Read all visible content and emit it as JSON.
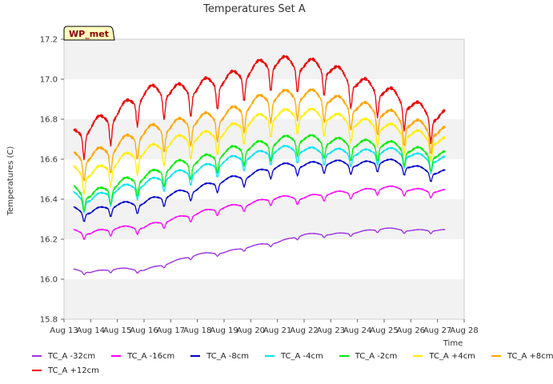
{
  "chart_data": {
    "type": "line",
    "title": "Temperatures Set A",
    "xlabel": "Time",
    "ylabel": "Temperatures (C)",
    "badge": "WP_met",
    "ylim": [
      15.8,
      17.2
    ],
    "yticks": [
      15.8,
      16.0,
      16.2,
      16.4,
      16.6,
      16.8,
      17.0,
      17.2
    ],
    "ytick_labels": [
      "15.8",
      "16.0",
      "16.2",
      "16.4",
      "16.6",
      "16.8",
      "17.0",
      "17.2"
    ],
    "xlim": [
      13,
      28
    ],
    "xticks": [
      13,
      14,
      15,
      16,
      17,
      18,
      19,
      20,
      21,
      22,
      23,
      24,
      25,
      26,
      27,
      28
    ],
    "xtick_labels": [
      "Aug 13",
      "Aug 14",
      "Aug 15",
      "Aug 16",
      "Aug 17",
      "Aug 18",
      "Aug 19",
      "Aug 20",
      "Aug 21",
      "Aug 22",
      "Aug 23",
      "Aug 24",
      "Aug 25",
      "Aug 26",
      "Aug 27",
      "Aug 28"
    ],
    "x": [
      "Aug 13",
      "Aug 14",
      "Aug 15",
      "Aug 16",
      "Aug 17",
      "Aug 18",
      "Aug 19",
      "Aug 20",
      "Aug 21",
      "Aug 22",
      "Aug 23",
      "Aug 24",
      "Aug 25",
      "Aug 26",
      "Aug 27"
    ],
    "grid": "horizontal shaded bands",
    "legend_position": "bottom",
    "series": [
      {
        "name": "TC_A -32cm",
        "color": "#9b30e0",
        "values": [
          16.05,
          16.03,
          16.05,
          16.04,
          16.08,
          16.12,
          16.13,
          16.16,
          16.18,
          16.22,
          16.22,
          16.23,
          16.25,
          16.24,
          16.24
        ]
      },
      {
        "name": "TC_A -16cm",
        "color": "#ff00ff",
        "values": [
          16.24,
          16.22,
          16.25,
          16.25,
          16.29,
          16.32,
          16.35,
          16.37,
          16.4,
          16.4,
          16.42,
          16.43,
          16.45,
          16.44,
          16.43
        ]
      },
      {
        "name": "TC_A -8cm",
        "color": "#0000cd",
        "values": [
          16.35,
          16.32,
          16.36,
          16.37,
          16.41,
          16.44,
          16.48,
          16.51,
          16.55,
          16.56,
          16.57,
          16.56,
          16.58,
          16.55,
          16.52
        ]
      },
      {
        "name": "TC_A -4cm",
        "color": "#00e5ee",
        "values": [
          16.42,
          16.38,
          16.43,
          16.46,
          16.5,
          16.53,
          16.57,
          16.6,
          16.63,
          16.63,
          16.62,
          16.61,
          16.63,
          16.6,
          16.58
        ]
      },
      {
        "name": "TC_A -2cm",
        "color": "#00ee00",
        "values": [
          16.44,
          16.4,
          16.45,
          16.49,
          16.54,
          16.57,
          16.61,
          16.64,
          16.67,
          16.68,
          16.67,
          16.65,
          16.66,
          16.62,
          16.6
        ]
      },
      {
        "name": "TC_A +4cm",
        "color": "#ffee00",
        "values": [
          16.52,
          16.5,
          16.56,
          16.61,
          16.66,
          16.68,
          16.71,
          16.76,
          16.8,
          16.8,
          16.79,
          16.75,
          16.74,
          16.7,
          16.66
        ]
      },
      {
        "name": "TC_A +8cm",
        "color": "#ffa500",
        "values": [
          16.57,
          16.58,
          16.64,
          16.7,
          16.74,
          16.76,
          16.79,
          16.84,
          16.89,
          16.89,
          16.87,
          16.83,
          16.8,
          16.75,
          16.7
        ]
      },
      {
        "name": "TC_A +12cm",
        "color": "#ee0000",
        "values": [
          16.66,
          16.72,
          16.8,
          16.89,
          16.91,
          16.92,
          16.96,
          17.01,
          17.05,
          17.04,
          17.01,
          16.95,
          16.9,
          16.84,
          16.77
        ]
      }
    ]
  }
}
